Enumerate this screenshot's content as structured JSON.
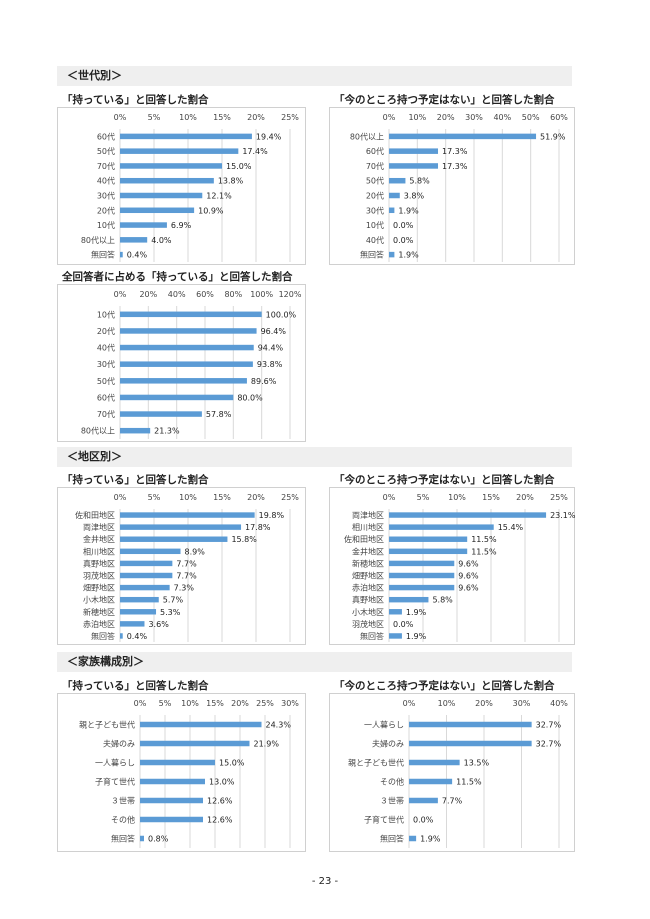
{
  "page_number": "- 23 -",
  "sections": {
    "age": "＜世代別＞",
    "area": "＜地区別＞",
    "family": "＜家族構成別＞"
  },
  "chart_data": [
    {
      "type": "bar",
      "orientation": "horizontal",
      "title": "「持っている」と回答した割合",
      "categories": [
        "60代",
        "50代",
        "70代",
        "40代",
        "30代",
        "20代",
        "10代",
        "80代以上",
        "無回答"
      ],
      "values": [
        19.4,
        17.4,
        15.0,
        13.8,
        12.1,
        10.9,
        6.9,
        4.0,
        0.4
      ],
      "value_labels": [
        "19.4%",
        "17.4%",
        "15.0%",
        "13.8%",
        "12.1%",
        "10.9%",
        "6.9%",
        "4.0%",
        "0.4%"
      ],
      "xlim": [
        0,
        25
      ],
      "ticks": [
        "0%",
        "5%",
        "10%",
        "15%",
        "20%",
        "25%"
      ],
      "color": "#5b9bd5"
    },
    {
      "type": "bar",
      "orientation": "horizontal",
      "title": "「今のところ持つ予定はない」と回答した割合",
      "categories": [
        "80代以上",
        "60代",
        "70代",
        "50代",
        "20代",
        "30代",
        "10代",
        "40代",
        "無回答"
      ],
      "values": [
        51.9,
        17.3,
        17.3,
        5.8,
        3.8,
        1.9,
        0.0,
        0.0,
        1.9
      ],
      "value_labels": [
        "51.9%",
        "17.3%",
        "17.3%",
        "5.8%",
        "3.8%",
        "1.9%",
        "0.0%",
        "0.0%",
        "1.9%"
      ],
      "xlim": [
        0,
        60
      ],
      "ticks": [
        "0%",
        "10%",
        "20%",
        "30%",
        "40%",
        "50%",
        "60%"
      ],
      "color": "#5b9bd5"
    },
    {
      "type": "bar",
      "orientation": "horizontal",
      "title": "全回答者に占める「持っている」と回答した割合",
      "categories": [
        "10代",
        "20代",
        "40代",
        "30代",
        "50代",
        "60代",
        "70代",
        "80代以上"
      ],
      "values": [
        100.0,
        96.4,
        94.4,
        93.8,
        89.6,
        80.0,
        57.8,
        21.3
      ],
      "value_labels": [
        "100.0%",
        "96.4%",
        "94.4%",
        "93.8%",
        "89.6%",
        "80.0%",
        "57.8%",
        "21.3%"
      ],
      "xlim": [
        0,
        120
      ],
      "ticks": [
        "0%",
        "20%",
        "40%",
        "60%",
        "80%",
        "100%",
        "120%"
      ],
      "color": "#5b9bd5"
    },
    {
      "type": "bar",
      "orientation": "horizontal",
      "title": "「持っている」と回答した割合",
      "categories": [
        "佐和田地区",
        "両津地区",
        "金井地区",
        "相川地区",
        "真野地区",
        "羽茂地区",
        "畑野地区",
        "小木地区",
        "新穂地区",
        "赤泊地区",
        "無回答"
      ],
      "values": [
        19.8,
        17.8,
        15.8,
        8.9,
        7.7,
        7.7,
        7.3,
        5.7,
        5.3,
        3.6,
        0.4
      ],
      "value_labels": [
        "19.8%",
        "17.8%",
        "15.8%",
        "8.9%",
        "7.7%",
        "7.7%",
        "7.3%",
        "5.7%",
        "5.3%",
        "3.6%",
        "0.4%"
      ],
      "xlim": [
        0,
        25
      ],
      "ticks": [
        "0%",
        "5%",
        "10%",
        "15%",
        "20%",
        "25%"
      ],
      "color": "#5b9bd5"
    },
    {
      "type": "bar",
      "orientation": "horizontal",
      "title": "「今のところ持つ予定はない」と回答した割合",
      "categories": [
        "両津地区",
        "相川地区",
        "佐和田地区",
        "金井地区",
        "新穂地区",
        "畑野地区",
        "赤泊地区",
        "真野地区",
        "小木地区",
        "羽茂地区",
        "無回答"
      ],
      "values": [
        23.1,
        15.4,
        11.5,
        11.5,
        9.6,
        9.6,
        9.6,
        5.8,
        1.9,
        0.0,
        1.9
      ],
      "value_labels": [
        "23.1%",
        "15.4%",
        "11.5%",
        "11.5%",
        "9.6%",
        "9.6%",
        "9.6%",
        "5.8%",
        "1.9%",
        "0.0%",
        "1.9%"
      ],
      "xlim": [
        0,
        25
      ],
      "ticks": [
        "0%",
        "5%",
        "10%",
        "15%",
        "20%",
        "25%"
      ],
      "color": "#5b9bd5"
    },
    {
      "type": "bar",
      "orientation": "horizontal",
      "title": "「持っている」と回答した割合",
      "categories": [
        "親と子ども世代",
        "夫婦のみ",
        "一人暮らし",
        "子育て世代",
        "３世帯",
        "その他",
        "無回答"
      ],
      "values": [
        24.3,
        21.9,
        15.0,
        13.0,
        12.6,
        12.6,
        0.8
      ],
      "value_labels": [
        "24.3%",
        "21.9%",
        "15.0%",
        "13.0%",
        "12.6%",
        "12.6%",
        "0.8%"
      ],
      "xlim": [
        0,
        30
      ],
      "ticks": [
        "0%",
        "5%",
        "10%",
        "15%",
        "20%",
        "25%",
        "30%"
      ],
      "color": "#5b9bd5"
    },
    {
      "type": "bar",
      "orientation": "horizontal",
      "title": "「今のところ持つ予定はない」と回答した割合",
      "categories": [
        "一人暮らし",
        "夫婦のみ",
        "親と子ども世代",
        "その他",
        "３世帯",
        "子育て世代",
        "無回答"
      ],
      "values": [
        32.7,
        32.7,
        13.5,
        11.5,
        7.7,
        0.0,
        1.9
      ],
      "value_labels": [
        "32.7%",
        "32.7%",
        "13.5%",
        "11.5%",
        "7.7%",
        "0.0%",
        "1.9%"
      ],
      "xlim": [
        0,
        40
      ],
      "ticks": [
        "0%",
        "10%",
        "20%",
        "30%",
        "40%"
      ],
      "color": "#5b9bd5"
    }
  ]
}
